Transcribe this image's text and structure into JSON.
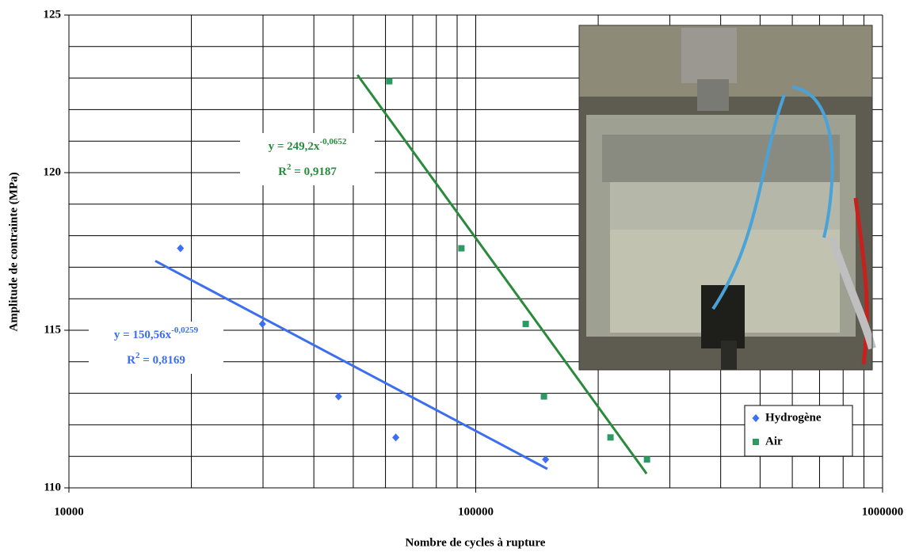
{
  "chart_data": {
    "type": "scatter",
    "xlabel": "Nombre de cycles à rupture",
    "ylabel": "Amplitude de contrainte (MPa)",
    "log_x": true,
    "grid": true,
    "legend": "lower right",
    "xlim": [
      10000,
      1000000
    ],
    "ylim": [
      110,
      125
    ],
    "xticks": [
      10000,
      100000,
      1000000
    ],
    "yticks": [
      110,
      115,
      120,
      125
    ],
    "minor_xticks": [
      20000,
      30000,
      40000,
      50000,
      60000,
      70000,
      80000,
      90000,
      200000,
      300000,
      400000,
      500000,
      600000,
      700000,
      800000,
      900000
    ],
    "minor_yticks": [
      111,
      112,
      113,
      114,
      116,
      117,
      118,
      119,
      121,
      122,
      123,
      124
    ],
    "series": [
      {
        "name": "Hydrogène",
        "color": "#3d6ef5",
        "marker": "diamond",
        "x": [
          18800,
          29900,
          46000,
          63600,
          148500
        ],
        "values": [
          117.6,
          115.2,
          112.9,
          111.6,
          110.9
        ]
      },
      {
        "name": "Air",
        "color": "#2e9a63",
        "marker": "square",
        "x": [
          61300,
          92200,
          132700,
          147100,
          214400,
          263600
        ],
        "values": [
          122.9,
          117.6,
          115.2,
          112.9,
          111.6,
          110.9
        ]
      }
    ],
    "trendlines": [
      {
        "color": "#3b6ef0",
        "x": [
          16300,
          150000
        ],
        "values": [
          117.2,
          110.6
        ],
        "label": {
          "equation": "y = 150,56x",
          "exponent": "-0,0259",
          "r2_base": "R",
          "r2_exponent": "2",
          "r2_rest": " = 0,8169"
        }
      },
      {
        "color": "#2a8a3c",
        "x": [
          51200,
          263000
        ],
        "values": [
          123.1,
          110.45
        ],
        "label": {
          "equation": "y = 249,2x",
          "exponent": "-0,0652",
          "r2_base": "R",
          "r2_exponent": "2",
          "r2_rest": " = 0,9187"
        }
      }
    ]
  }
}
